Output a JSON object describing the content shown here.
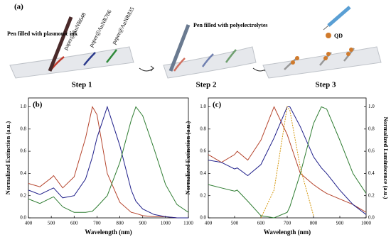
{
  "schematic": {
    "label": "(a)",
    "pen1": "Pen filled with plasmonic ink",
    "paper1": "paper@AuNR648",
    "paper2": "paper@AuNR706",
    "paper3": "paper@AuNR835",
    "pen2": "Pen filled with polyelectrolytes",
    "qd": "QD",
    "steps": [
      "Step 1",
      "Step 2",
      "Step 3"
    ]
  },
  "chart_data": [
    {
      "type": "line",
      "label": "(b)",
      "xlabel": "Wavelength (nm)",
      "ylabel": "Normalized Extinction (a.u.)",
      "x": [
        400,
        450,
        500,
        510,
        550,
        600,
        650,
        680,
        700,
        745,
        800,
        850,
        870,
        900,
        950,
        1000,
        1050,
        1100
      ],
      "series": [
        {
          "color": "#b5442c",
          "values": [
            0.31,
            0.28,
            0.36,
            0.38,
            0.27,
            0.37,
            0.72,
            1.0,
            0.93,
            0.4,
            0.14,
            0.05,
            0.04,
            0.02,
            0.01,
            0.01,
            0.0,
            0.0
          ]
        },
        {
          "color": "#1f1f8a",
          "values": [
            0.25,
            0.21,
            0.26,
            0.27,
            0.18,
            0.2,
            0.35,
            0.55,
            0.72,
            1.0,
            0.65,
            0.25,
            0.15,
            0.08,
            0.03,
            0.01,
            0.0,
            0.0
          ]
        },
        {
          "color": "#2f7d32",
          "values": [
            0.17,
            0.13,
            0.18,
            0.19,
            0.1,
            0.05,
            0.05,
            0.06,
            0.1,
            0.2,
            0.5,
            0.88,
            1.0,
            0.92,
            0.62,
            0.3,
            0.12,
            0.05
          ]
        }
      ],
      "xlim": [
        400,
        1100
      ],
      "xticks": [
        400,
        500,
        600,
        700,
        800,
        900,
        1000,
        1100
      ],
      "ylim": [
        0,
        1.08
      ],
      "yticks": [
        {
          "value": 0,
          "label": "0.0"
        },
        {
          "value": 0.2,
          "label": "0.2"
        },
        {
          "value": 0.4,
          "label": "0.4"
        },
        {
          "value": 0.6,
          "label": "0.6"
        },
        {
          "value": 0.8,
          "label": "0.8"
        },
        {
          "value": 1,
          "label": "1.0"
        }
      ]
    },
    {
      "type": "line",
      "label": "(c)",
      "xlabel": "Wavelength (nm)",
      "ylabel": "Normalized Extinction (a.u.)",
      "y2label": "Normalized Luminiscence (a.u.)",
      "x": [
        400,
        450,
        500,
        510,
        550,
        600,
        650,
        700,
        710,
        750,
        800,
        830,
        850,
        900,
        950,
        1000
      ],
      "series": [
        {
          "color": "#b5442c",
          "values": [
            0.57,
            0.5,
            0.57,
            0.6,
            0.52,
            0.7,
            1.0,
            0.75,
            0.68,
            0.4,
            0.3,
            0.25,
            0.22,
            0.17,
            0.12,
            0.05
          ]
        },
        {
          "color": "#1f1f8a",
          "values": [
            0.52,
            0.5,
            0.44,
            0.45,
            0.38,
            0.48,
            0.72,
            1.0,
            1.0,
            0.82,
            0.55,
            0.45,
            0.4,
            0.25,
            0.12,
            0.03
          ]
        },
        {
          "color": "#2f7d32",
          "values": [
            0.3,
            0.27,
            0.24,
            0.25,
            0.15,
            0.02,
            0.0,
            0.05,
            0.1,
            0.4,
            0.85,
            1.0,
            0.98,
            0.7,
            0.4,
            0.22
          ]
        },
        {
          "color": "#d4960a",
          "style": "dashed",
          "axis": "y2",
          "values": [
            null,
            null,
            null,
            null,
            null,
            0.0,
            0.25,
            1.0,
            0.97,
            0.45,
            0.02,
            null,
            null,
            null,
            null,
            null
          ]
        }
      ],
      "xlim": [
        400,
        1000
      ],
      "xticks": [
        400,
        500,
        600,
        700,
        800,
        900,
        1000
      ],
      "ylim": [
        0,
        1.08
      ],
      "yticks": [
        {
          "value": 0,
          "label": "0.0"
        },
        {
          "value": 0.2,
          "label": "0.2"
        },
        {
          "value": 0.4,
          "label": "0.4"
        },
        {
          "value": 0.6,
          "label": "0.6"
        },
        {
          "value": 0.8,
          "label": "0.8"
        },
        {
          "value": 1,
          "label": "1.0"
        }
      ],
      "y2lim": [
        0,
        1.08
      ],
      "y2ticks": [
        {
          "value": 0,
          "label": "0.0"
        },
        {
          "value": 0.2,
          "label": "0.2"
        },
        {
          "value": 0.4,
          "label": "0.4"
        },
        {
          "value": 0.6,
          "label": "0.6"
        },
        {
          "value": 0.8,
          "label": "0.8"
        },
        {
          "value": 1,
          "label": "1.0"
        }
      ]
    }
  ]
}
